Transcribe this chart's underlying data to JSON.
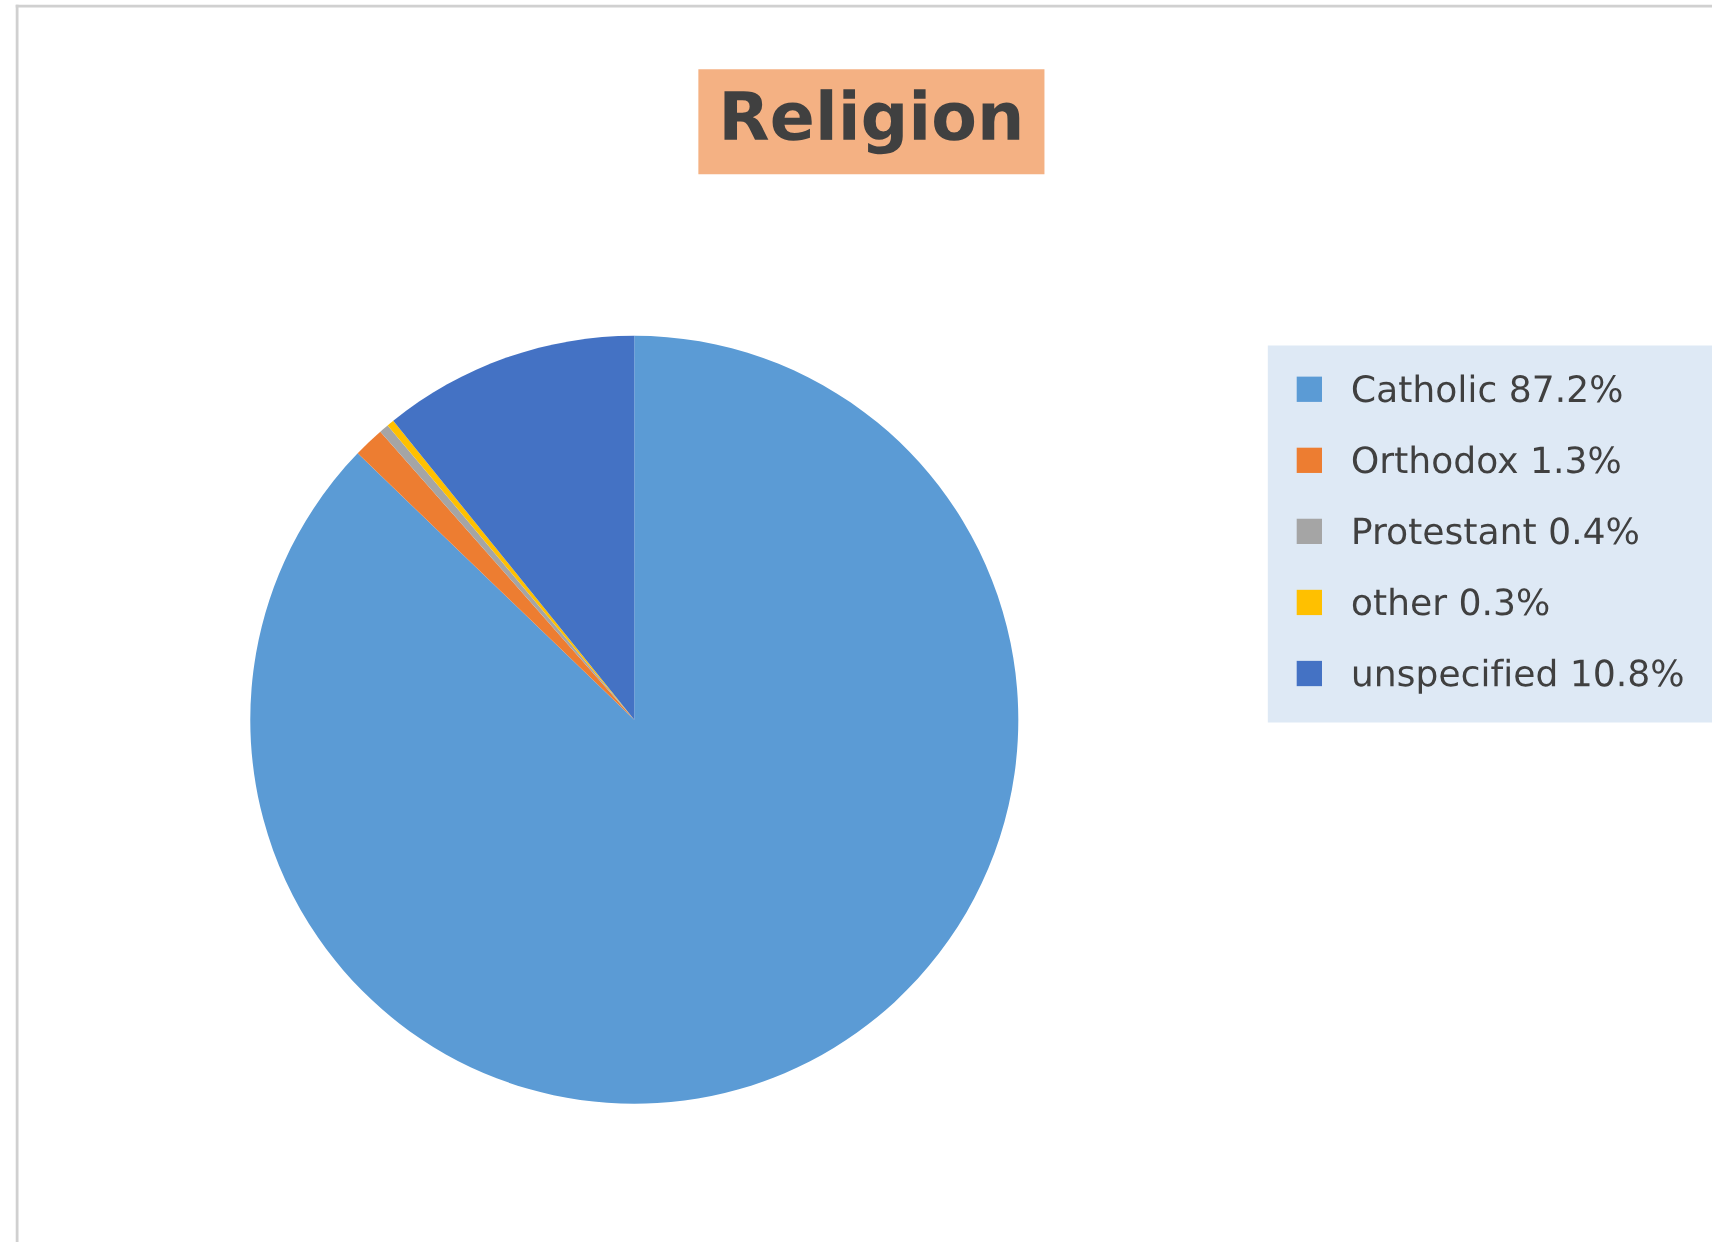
{
  "chart_data": {
    "type": "pie",
    "title": "Religion",
    "categories": [
      "Catholic 87.2%",
      "Orthodox 1.3%",
      "Protestant 0.4%",
      "other 0.3%",
      "unspecified 10.8%"
    ],
    "values": [
      87.2,
      1.3,
      0.4,
      0.3,
      10.8
    ],
    "colors": [
      "#5b9bd5",
      "#ed7d31",
      "#a5a5a5",
      "#ffc000",
      "#4472c4"
    ],
    "legend": "right"
  }
}
